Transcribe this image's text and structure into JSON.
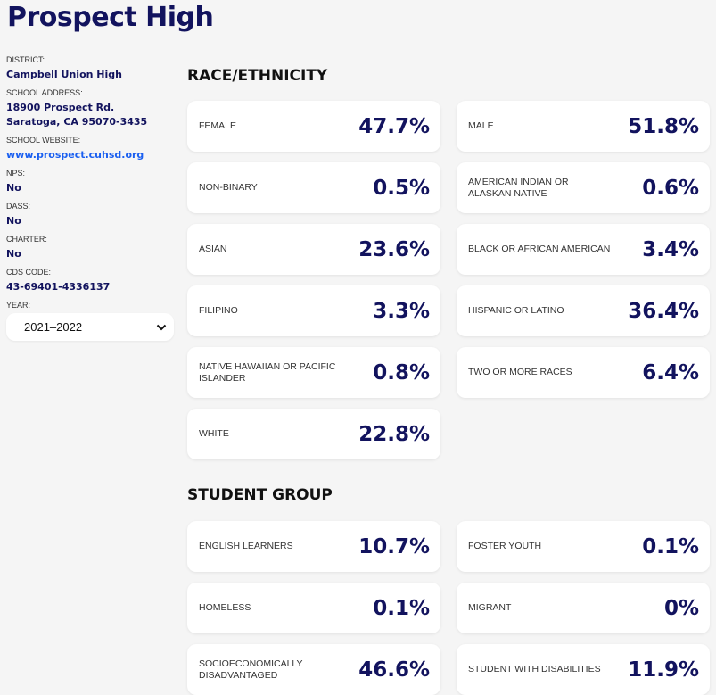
{
  "title": "Prospect High",
  "sidebar": {
    "district_label": "DISTRICT:",
    "district": "Campbell Union High",
    "address_label": "SCHOOL ADDRESS:",
    "address_line1": "18900 Prospect Rd.",
    "address_line2": "Saratoga, CA 95070-3435",
    "website_label": "SCHOOL WEBSITE:",
    "website": "www.prospect.cuhsd.org",
    "nps_label": "NPS:",
    "nps": "No",
    "dass_label": "DASS:",
    "dass": "No",
    "charter_label": "CHARTER:",
    "charter": "No",
    "cds_label": "CDS CODE:",
    "cds": "43-69401-4336137",
    "year_label": "YEAR:",
    "year": "2021–2022"
  },
  "race": {
    "heading": "RACE/ETHNICITY",
    "items": [
      {
        "label": "FEMALE",
        "value": "47.7%"
      },
      {
        "label": "MALE",
        "value": "51.8%"
      },
      {
        "label": "NON-BINARY",
        "value": "0.5%"
      },
      {
        "label": "AMERICAN INDIAN OR ALASKAN NATIVE",
        "value": "0.6%"
      },
      {
        "label": "ASIAN",
        "value": "23.6%"
      },
      {
        "label": "BLACK OR AFRICAN AMERICAN",
        "value": "3.4%"
      },
      {
        "label": "FILIPINO",
        "value": "3.3%"
      },
      {
        "label": "HISPANIC OR LATINO",
        "value": "36.4%"
      },
      {
        "label": "NATIVE HAWAIIAN OR PACIFIC ISLANDER",
        "value": "0.8%"
      },
      {
        "label": "TWO OR MORE RACES",
        "value": "6.4%"
      },
      {
        "label": "WHITE",
        "value": "22.8%"
      }
    ]
  },
  "groups": {
    "heading": "STUDENT GROUP",
    "items": [
      {
        "label": "ENGLISH LEARNERS",
        "value": "10.7%"
      },
      {
        "label": "FOSTER YOUTH",
        "value": "0.1%"
      },
      {
        "label": "HOMELESS",
        "value": "0.1%"
      },
      {
        "label": "MIGRANT",
        "value": "0%"
      },
      {
        "label": "SOCIOECONOMICALLY DISADVANTAGED",
        "value": "46.6%"
      },
      {
        "label": "STUDENT WITH DISABILITIES",
        "value": "11.9%"
      }
    ]
  }
}
